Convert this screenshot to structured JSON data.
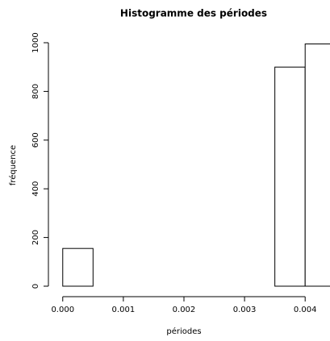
{
  "chart_data": {
    "type": "histogram",
    "title": "Histogramme des périodes",
    "x_label": "périodes",
    "y_label": "fréquence",
    "bins": [
      0,
      0.0005,
      0.001,
      0.0015,
      0.002,
      0.0025,
      0.003,
      0.0035,
      0.004,
      0.0045
    ],
    "values": [
      155,
      0,
      0,
      0,
      0,
      0,
      0,
      900,
      995
    ],
    "color": "#ffffff",
    "edge_color": "#000000",
    "xlim": [
      -0.00013,
      0.00441
    ],
    "ylim": [
      0,
      1000
    ],
    "xticks": [
      {
        "value": 0,
        "label": "0.000"
      },
      {
        "value": 0.001,
        "label": "0.001"
      },
      {
        "value": 0.002,
        "label": "0.002"
      },
      {
        "value": 0.003,
        "label": "0.003"
      },
      {
        "value": 0.004,
        "label": "0.004"
      }
    ],
    "yticks": [
      0,
      200,
      400,
      600,
      800,
      1000
    ]
  }
}
